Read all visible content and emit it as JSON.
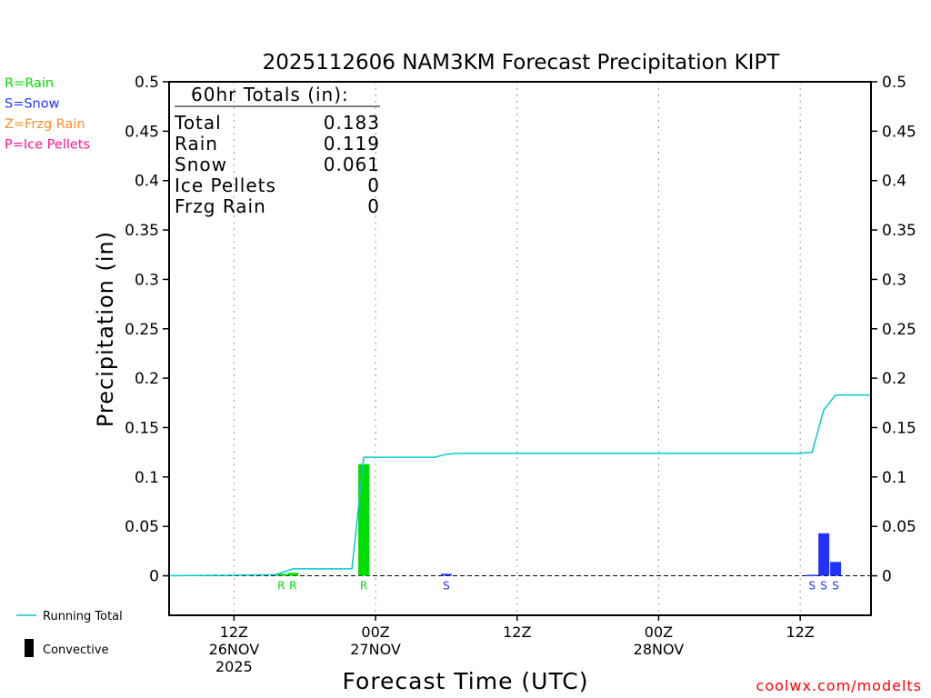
{
  "chart_data": {
    "type": "bar",
    "title": "2025112606 NAM3KM Forecast Precipitation KIPT",
    "xlabel": "Forecast Time (UTC)",
    "ylabel": "Precipitation (in)",
    "ylim": [
      -0.04,
      0.5
    ],
    "yticks": [
      0,
      0.05,
      0.1,
      0.15,
      0.2,
      0.25,
      0.3,
      0.35,
      0.4,
      0.45,
      0.5
    ],
    "ytick_labels": [
      "0",
      "0.05",
      "0.1",
      "0.15",
      "0.2",
      "0.25",
      "0.3",
      "0.35",
      "0.4",
      "0.45",
      "0.5"
    ],
    "x_unit": "forecast hour",
    "xlim": [
      0,
      60
    ],
    "xticks": [
      {
        "hour": 6,
        "lines": [
          "12Z",
          "26NOV",
          "2025"
        ]
      },
      {
        "hour": 18,
        "lines": [
          "00Z",
          "27NOV"
        ]
      },
      {
        "hour": 30,
        "lines": [
          "12Z"
        ]
      },
      {
        "hour": 42,
        "lines": [
          "00Z",
          "28NOV"
        ]
      },
      {
        "hour": 54,
        "lines": [
          "12Z"
        ]
      }
    ],
    "grid": "vertical dotted at tick hours",
    "bars": [
      {
        "hour": 10,
        "value": 0.002,
        "type": "R"
      },
      {
        "hour": 11,
        "value": 0.003,
        "type": "R"
      },
      {
        "hour": 17,
        "value": 0.113,
        "type": "R"
      },
      {
        "hour": 24,
        "value": 0.002,
        "type": "S"
      },
      {
        "hour": 55,
        "value": 0.001,
        "type": "S"
      },
      {
        "hour": 56,
        "value": 0.043,
        "type": "S"
      },
      {
        "hour": 57,
        "value": 0.014,
        "type": "S"
      }
    ],
    "series": [
      {
        "name": "Running Total",
        "x": [
          0,
          9.5,
          11,
          16,
          17,
          23,
          24,
          25,
          54,
          55,
          56,
          57,
          60
        ],
        "y": [
          0,
          0.001,
          0.007,
          0.007,
          0.12,
          0.12,
          0.123,
          0.124,
          0.124,
          0.125,
          0.168,
          0.183,
          0.183
        ]
      }
    ],
    "totals": {
      "header": "60hr Totals (in):",
      "rows": [
        {
          "label": "Total",
          "value": "0.183"
        },
        {
          "label": "Rain",
          "value": "0.119"
        },
        {
          "label": "Snow",
          "value": "0.061"
        },
        {
          "label": "Ice Pellets",
          "value": "0"
        },
        {
          "label": "Frzg Rain",
          "value": "0"
        }
      ]
    },
    "type_legend": [
      {
        "code": "R",
        "text": "R=Rain",
        "color": "#00dd00"
      },
      {
        "code": "S",
        "text": "S=Snow",
        "color": "#2233ff"
      },
      {
        "code": "Z",
        "text": "Z=Frzg Rain",
        "color": "#ff8c2a"
      },
      {
        "code": "P",
        "text": "P=Ice Pellets",
        "color": "#ff1493"
      }
    ],
    "line_legend": {
      "running_total": "Running Total",
      "convective": "Convective"
    },
    "colors": {
      "running_total": "#00cccc",
      "axis": "#000000",
      "grid": "#999999",
      "credit": "#ff0000"
    }
  },
  "credit": "coolwx.com/modelts"
}
